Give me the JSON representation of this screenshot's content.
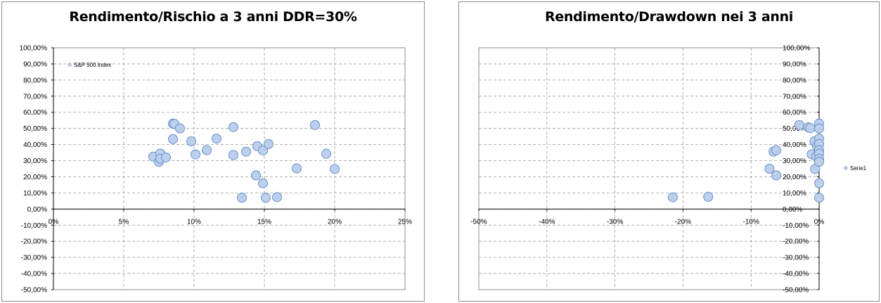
{
  "chart_data": [
    {
      "type": "scatter",
      "title": "Rendimento/Rischio a 3 anni DDR=30%",
      "xlim": [
        0,
        0.25
      ],
      "ylim": [
        -0.5,
        1.0
      ],
      "x_ticks": [
        "0%",
        "5%",
        "10%",
        "15%",
        "20%",
        "25%"
      ],
      "y_ticks": [
        "100,00%",
        "90,00%",
        "80,00%",
        "70,00%",
        "60,00%",
        "50,00%",
        "40,00%",
        "30,00%",
        "20,00%",
        "10,00%",
        "0,00%",
        "-10,00%",
        "-20,00%",
        "-30,00%",
        "-40,00%",
        "-50,00%"
      ],
      "grid": true,
      "legend_position": "top-left",
      "series": [
        {
          "name": "S&P 500 Index",
          "color": "#bcd0ee",
          "points": [
            [
              0.071,
              0.325
            ],
            [
              0.075,
              0.293
            ],
            [
              0.076,
              0.344
            ],
            [
              0.076,
              0.312
            ],
            [
              0.08,
              0.32
            ],
            [
              0.085,
              0.53
            ],
            [
              0.086,
              0.528
            ],
            [
              0.085,
              0.434
            ],
            [
              0.09,
              0.5
            ],
            [
              0.098,
              0.42
            ],
            [
              0.101,
              0.339
            ],
            [
              0.109,
              0.365
            ],
            [
              0.116,
              0.437
            ],
            [
              0.128,
              0.508
            ],
            [
              0.128,
              0.335
            ],
            [
              0.134,
              0.07
            ],
            [
              0.137,
              0.356
            ],
            [
              0.144,
              0.209
            ],
            [
              0.145,
              0.39
            ],
            [
              0.149,
              0.363
            ],
            [
              0.149,
              0.16
            ],
            [
              0.151,
              0.07
            ],
            [
              0.153,
              0.403
            ],
            [
              0.159,
              0.074
            ],
            [
              0.173,
              0.252
            ],
            [
              0.186,
              0.521
            ],
            [
              0.194,
              0.343
            ],
            [
              0.2,
              0.248
            ]
          ]
        }
      ]
    },
    {
      "type": "scatter",
      "title": "Rendimento/Drawdown nei 3 anni",
      "xlim": [
        -0.5,
        0
      ],
      "ylim": [
        -0.5,
        1.0
      ],
      "x_ticks": [
        "-50%",
        "-40%",
        "-30%",
        "-20%",
        "-10%",
        "0%"
      ],
      "y_ticks": [
        "100,00%",
        "90,00%",
        "80,00%",
        "70,00%",
        "60,00%",
        "50,00%",
        "40,00%",
        "30,00%",
        "20,00%",
        "10,00%",
        "0,00%",
        "-10,00%",
        "-20,00%",
        "-30,00%",
        "-40,00%",
        "-50,00%"
      ],
      "grid": true,
      "legend_position": "right",
      "series": [
        {
          "name": "Serie1",
          "color": "#bcd0ee",
          "points": [
            [
              -0.215,
              0.073
            ],
            [
              -0.163,
              0.076
            ],
            [
              -0.073,
              0.25
            ],
            [
              -0.067,
              0.356
            ],
            [
              -0.063,
              0.365
            ],
            [
              -0.063,
              0.209
            ],
            [
              -0.029,
              0.521
            ],
            [
              -0.016,
              0.507
            ],
            [
              -0.013,
              0.502
            ],
            [
              -0.011,
              0.339
            ],
            [
              -0.007,
              0.42
            ],
            [
              -0.006,
              0.248
            ],
            [
              -0.004,
              0.325
            ],
            [
              -0.003,
              0.39
            ],
            [
              0.0,
              0.53
            ],
            [
              0.0,
              0.5
            ],
            [
              0.0,
              0.437
            ],
            [
              0.0,
              0.403
            ],
            [
              0.0,
              0.365
            ],
            [
              0.0,
              0.343
            ],
            [
              0.0,
              0.312
            ],
            [
              0.0,
              0.293
            ],
            [
              0.0,
              0.16
            ],
            [
              0.0,
              0.07
            ]
          ]
        }
      ]
    }
  ]
}
